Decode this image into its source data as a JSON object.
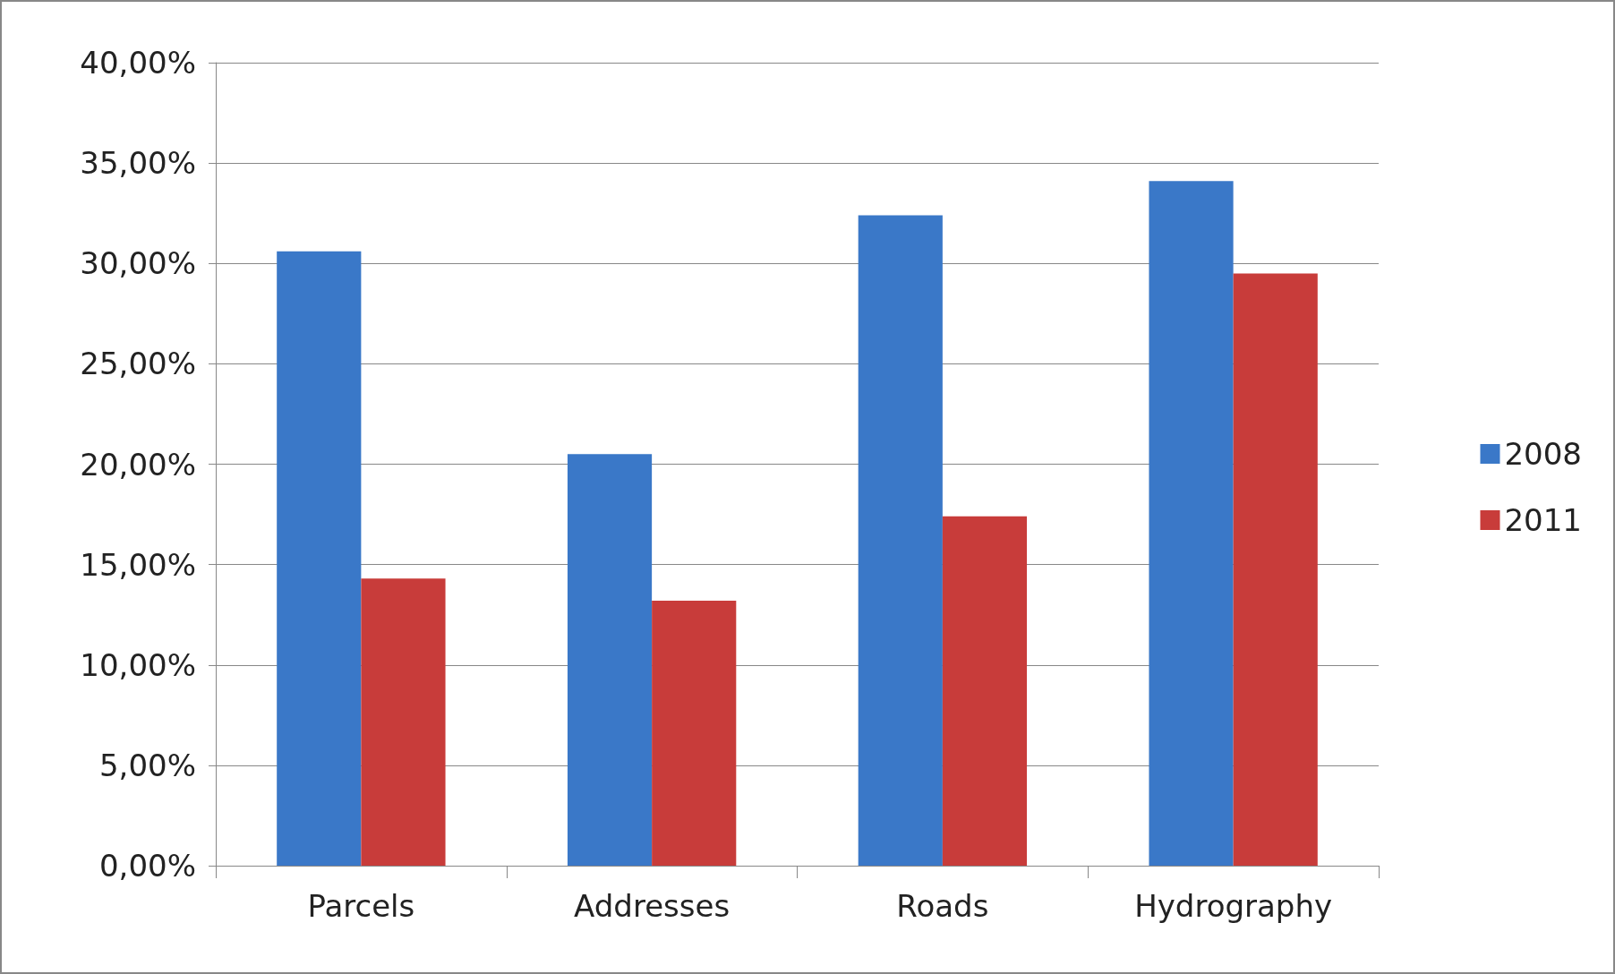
{
  "chart_data": {
    "type": "bar",
    "categories": [
      "Parcels",
      "Addresses",
      "Roads",
      "Hydrography"
    ],
    "series": [
      {
        "name": "2008",
        "color": "#3a78c8",
        "values": [
          30.6,
          20.5,
          32.4,
          34.1
        ]
      },
      {
        "name": "2011",
        "color": "#c83c3a",
        "values": [
          14.3,
          13.2,
          17.4,
          29.5
        ]
      }
    ],
    "ylim": [
      0,
      40
    ],
    "yticks": [
      {
        "value": 0,
        "label": "0,00%"
      },
      {
        "value": 5,
        "label": "5,00%"
      },
      {
        "value": 10,
        "label": "10,00%"
      },
      {
        "value": 15,
        "label": "15,00%"
      },
      {
        "value": 20,
        "label": "20,00%"
      },
      {
        "value": 25,
        "label": "25,00%"
      },
      {
        "value": 30,
        "label": "30,00%"
      },
      {
        "value": 35,
        "label": "35,00%"
      },
      {
        "value": 40,
        "label": "40,00%"
      }
    ],
    "grid": "y",
    "legend": "right"
  }
}
